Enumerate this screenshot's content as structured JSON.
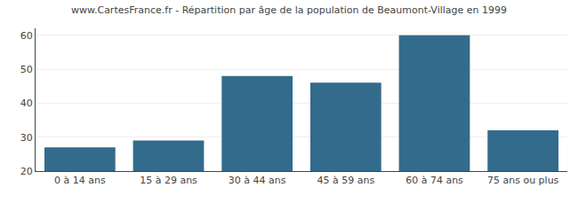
{
  "chart_data": {
    "type": "bar",
    "title": "www.CartesFrance.fr - Répartition par âge de la population de Beaumont-Village en 1999",
    "categories": [
      "0 à 14 ans",
      "15 à 29 ans",
      "30 à 44 ans",
      "45 à 59 ans",
      "60 à 74 ans",
      "75 ans ou plus"
    ],
    "values": [
      27,
      29,
      48,
      46,
      60,
      32
    ],
    "color": "#336b8c",
    "ylim": [
      20,
      62
    ],
    "yticks": [
      20,
      30,
      40,
      50,
      60
    ],
    "grid": true
  }
}
